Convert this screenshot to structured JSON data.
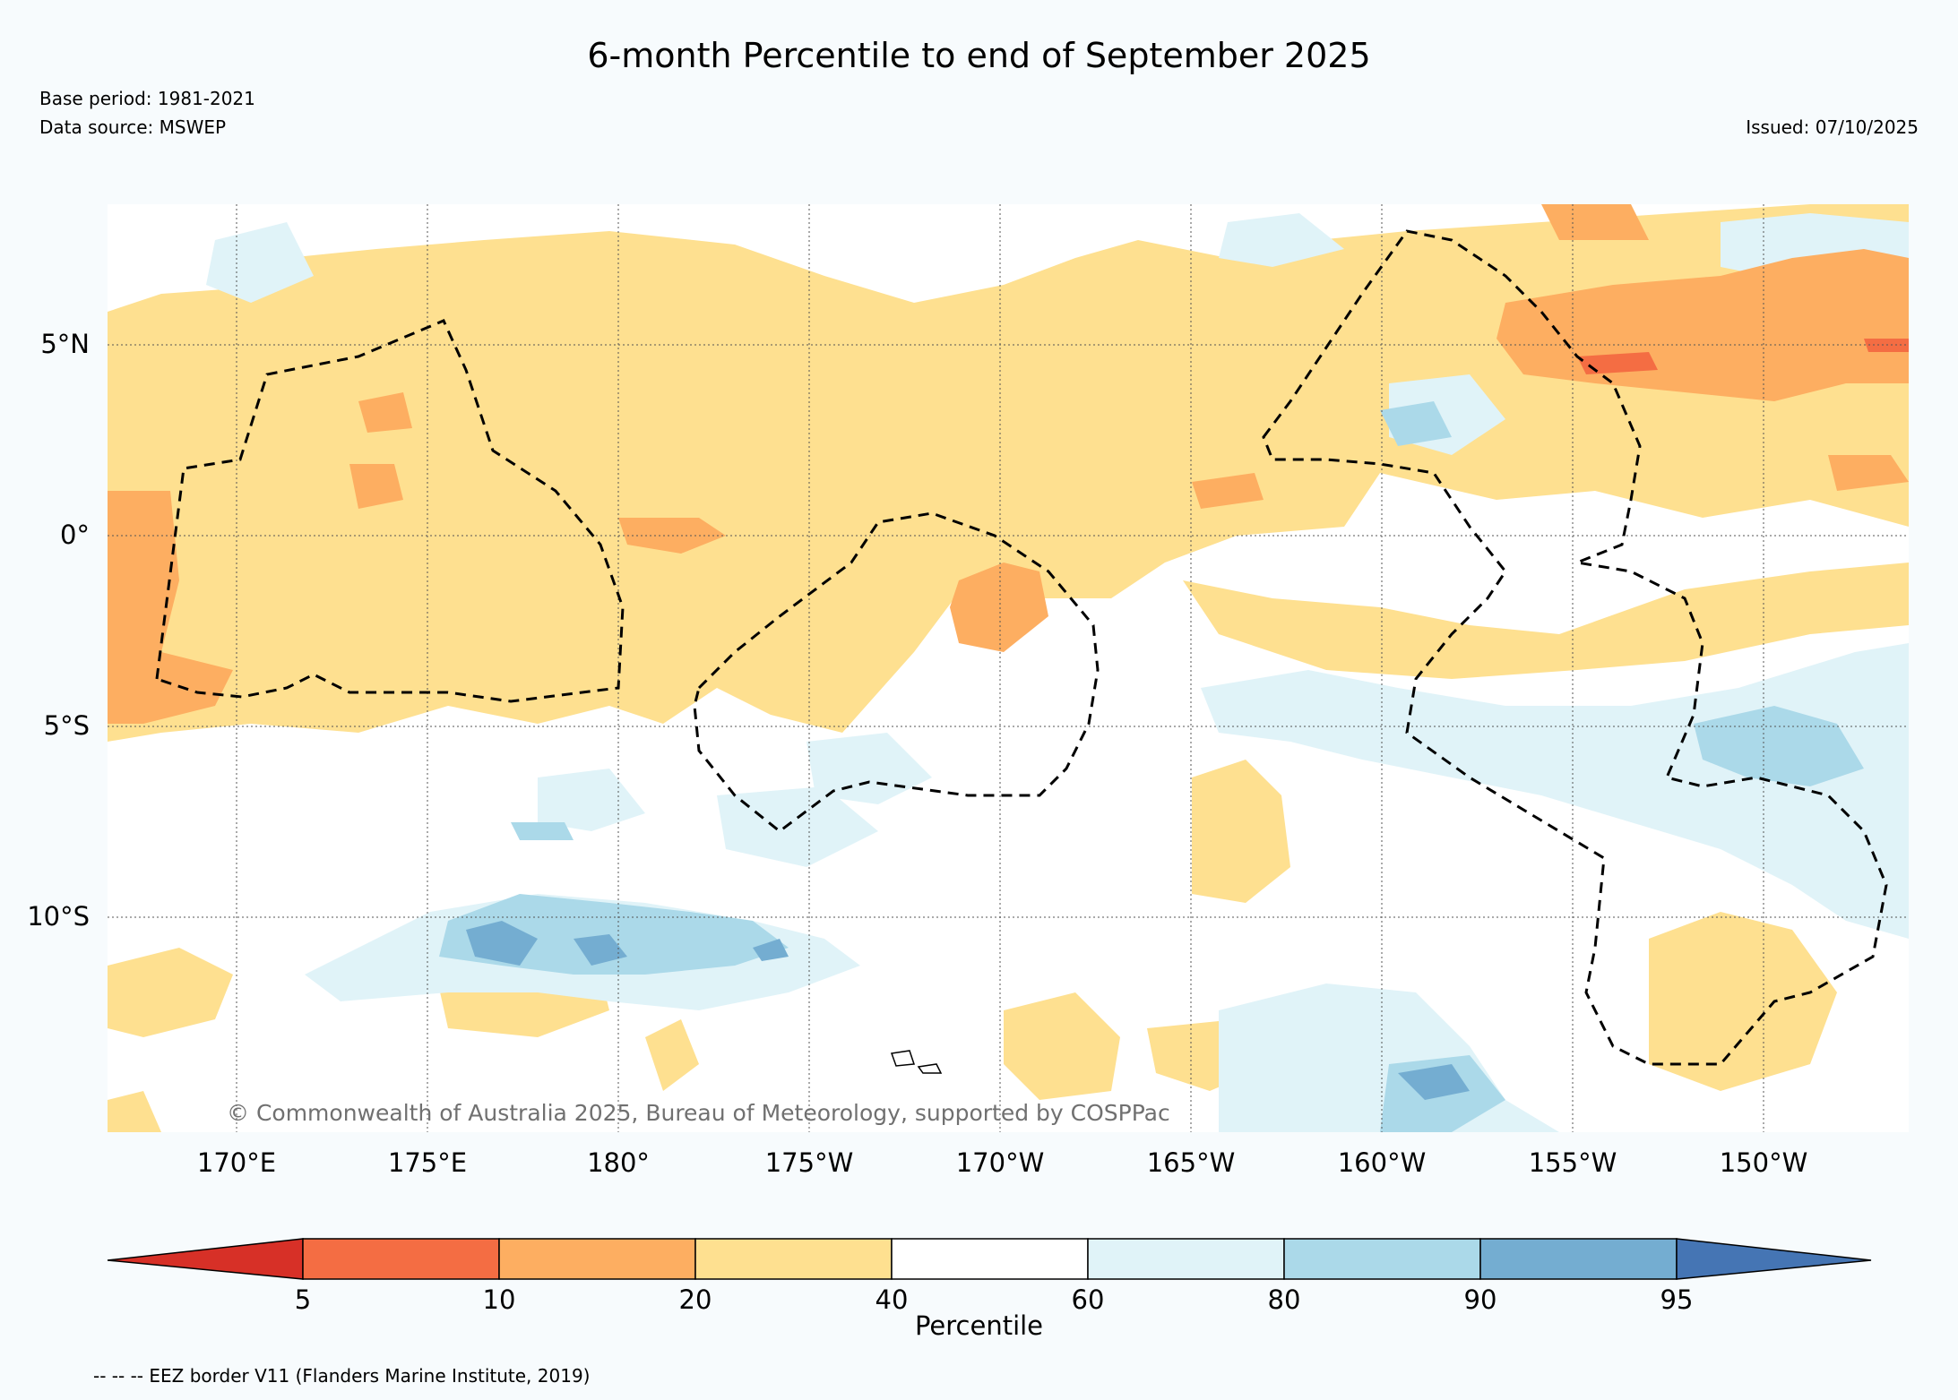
{
  "title": "6-month Percentile to end of September 2025",
  "base_period": "Base period: 1981-2021",
  "data_source": "Data source: MSWEP",
  "issued": "Issued: 07/10/2025",
  "copyright": "© Commonwealth of Australia 2025, Bureau of Meteorology, supported by COSPPac",
  "eez_note": "-- -- -- EEZ border V11 (Flanders Marine Institute, 2019)",
  "map": {
    "lat_labels": [
      "5°N",
      "0°",
      "5°S",
      "10°S"
    ],
    "lon_labels": [
      "170°E",
      "175°E",
      "180°",
      "175°W",
      "170°W",
      "165°W",
      "160°W",
      "155°W",
      "150°W"
    ]
  },
  "colorbar": {
    "label": "Percentile",
    "ticks": [
      "5",
      "10",
      "20",
      "40",
      "60",
      "80",
      "90",
      "95"
    ],
    "colors": [
      "#d73027",
      "#f46d43",
      "#fdae61",
      "#fee090",
      "#ffffff",
      "#e0f3f8",
      "#abd9e9",
      "#74add1",
      "#4575b4"
    ]
  }
}
